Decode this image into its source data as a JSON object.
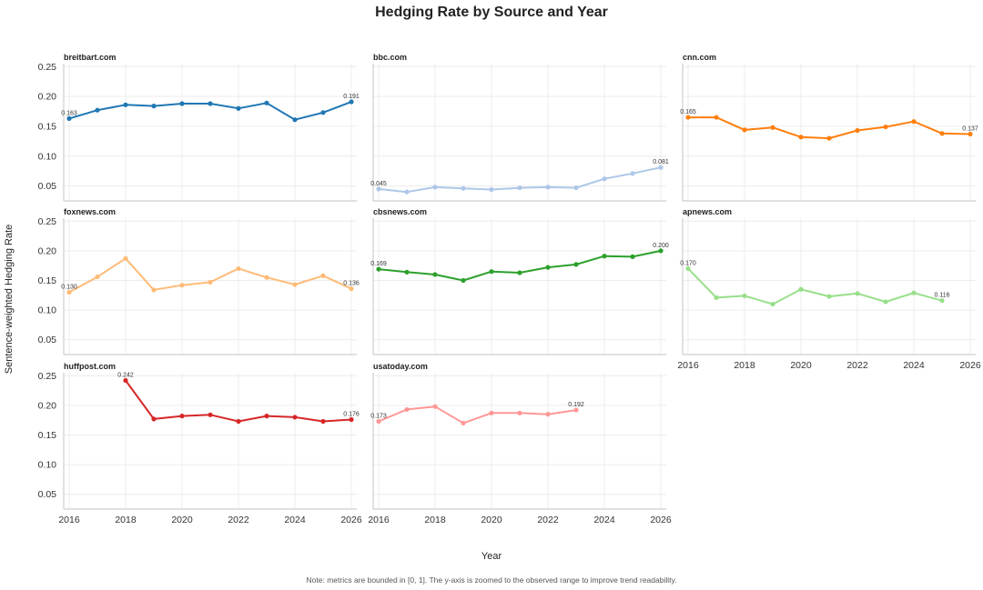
{
  "chart_data": {
    "type": "line",
    "title": "Hedging Rate by Source and Year",
    "xlabel": "Year",
    "ylabel": "Sentence-weighted Hedging Rate",
    "note": "Note: metrics are bounded in [0, 1]. The y-axis is zoomed to the observed range to improve trend readability.",
    "xlim": [
      2016,
      2026
    ],
    "ylim": [
      0.025,
      0.255
    ],
    "xticks": [
      2016,
      2018,
      2020,
      2022,
      2024,
      2026
    ],
    "xtick_labels": [
      "2016",
      "2018",
      "2020",
      "2022",
      "2024",
      "2026"
    ],
    "yticks": [
      0.05,
      0.1,
      0.15,
      0.2,
      0.25
    ],
    "ytick_labels": [
      "0.05",
      "0.10",
      "0.15",
      "0.20",
      "0.25"
    ],
    "panels": [
      {
        "name": "breitbart.com",
        "color": "#1f77b4",
        "x": [
          2016,
          2017,
          2018,
          2019,
          2020,
          2021,
          2022,
          2023,
          2024,
          2025,
          2026
        ],
        "y": [
          0.163,
          0.177,
          0.186,
          0.184,
          0.188,
          0.188,
          0.18,
          0.189,
          0.161,
          0.173,
          0.191
        ],
        "first_label": "0.163",
        "last_label": "0.191"
      },
      {
        "name": "bbc.com",
        "color": "#aec7e8",
        "x": [
          2016,
          2017,
          2018,
          2019,
          2020,
          2021,
          2022,
          2023,
          2024,
          2025,
          2026
        ],
        "y": [
          0.045,
          0.04,
          0.048,
          0.046,
          0.044,
          0.047,
          0.048,
          0.047,
          0.062,
          0.071,
          0.081
        ],
        "first_label": "0.045",
        "last_label": "0.081"
      },
      {
        "name": "cnn.com",
        "color": "#ff7f0e",
        "x": [
          2016,
          2017,
          2018,
          2019,
          2020,
          2021,
          2022,
          2023,
          2024,
          2025,
          2026
        ],
        "y": [
          0.165,
          0.165,
          0.144,
          0.148,
          0.132,
          0.13,
          0.143,
          0.149,
          0.158,
          0.138,
          0.137
        ],
        "first_label": "0.165",
        "last_label": "0.137"
      },
      {
        "name": "foxnews.com",
        "color": "#ffbb78",
        "x": [
          2016,
          2017,
          2018,
          2019,
          2020,
          2021,
          2022,
          2023,
          2024,
          2025,
          2026
        ],
        "y": [
          0.13,
          0.156,
          0.187,
          0.134,
          0.142,
          0.147,
          0.17,
          0.155,
          0.143,
          0.158,
          0.136
        ],
        "first_label": "0.130",
        "last_label": "0.136"
      },
      {
        "name": "cbsnews.com",
        "color": "#2ca02c",
        "x": [
          2016,
          2017,
          2018,
          2019,
          2020,
          2021,
          2022,
          2023,
          2024,
          2025,
          2026
        ],
        "y": [
          0.169,
          0.164,
          0.16,
          0.15,
          0.165,
          0.163,
          0.172,
          0.177,
          0.191,
          0.19,
          0.2
        ],
        "first_label": "0.169",
        "last_label": "0.200"
      },
      {
        "name": "apnews.com",
        "color": "#98df8a",
        "x": [
          2016,
          2017,
          2018,
          2019,
          2020,
          2021,
          2022,
          2023,
          2024,
          2025
        ],
        "y": [
          0.17,
          0.121,
          0.124,
          0.11,
          0.135,
          0.123,
          0.128,
          0.114,
          0.129,
          0.116
        ],
        "first_label": "0.170",
        "last_label": "0.116"
      },
      {
        "name": "huffpost.com",
        "color": "#d62728",
        "x": [
          2018,
          2019,
          2020,
          2021,
          2022,
          2023,
          2024,
          2025,
          2026
        ],
        "y": [
          0.242,
          0.177,
          0.182,
          0.184,
          0.173,
          0.182,
          0.18,
          0.173,
          0.176
        ],
        "first_label": "0.242",
        "last_label": "0.176"
      },
      {
        "name": "usatoday.com",
        "color": "#ff9896",
        "x": [
          2016,
          2017,
          2018,
          2019,
          2020,
          2021,
          2022,
          2023
        ],
        "y": [
          0.173,
          0.193,
          0.198,
          0.17,
          0.187,
          0.187,
          0.185,
          0.192
        ],
        "first_label": "0.173",
        "last_label": "0.192"
      }
    ]
  }
}
